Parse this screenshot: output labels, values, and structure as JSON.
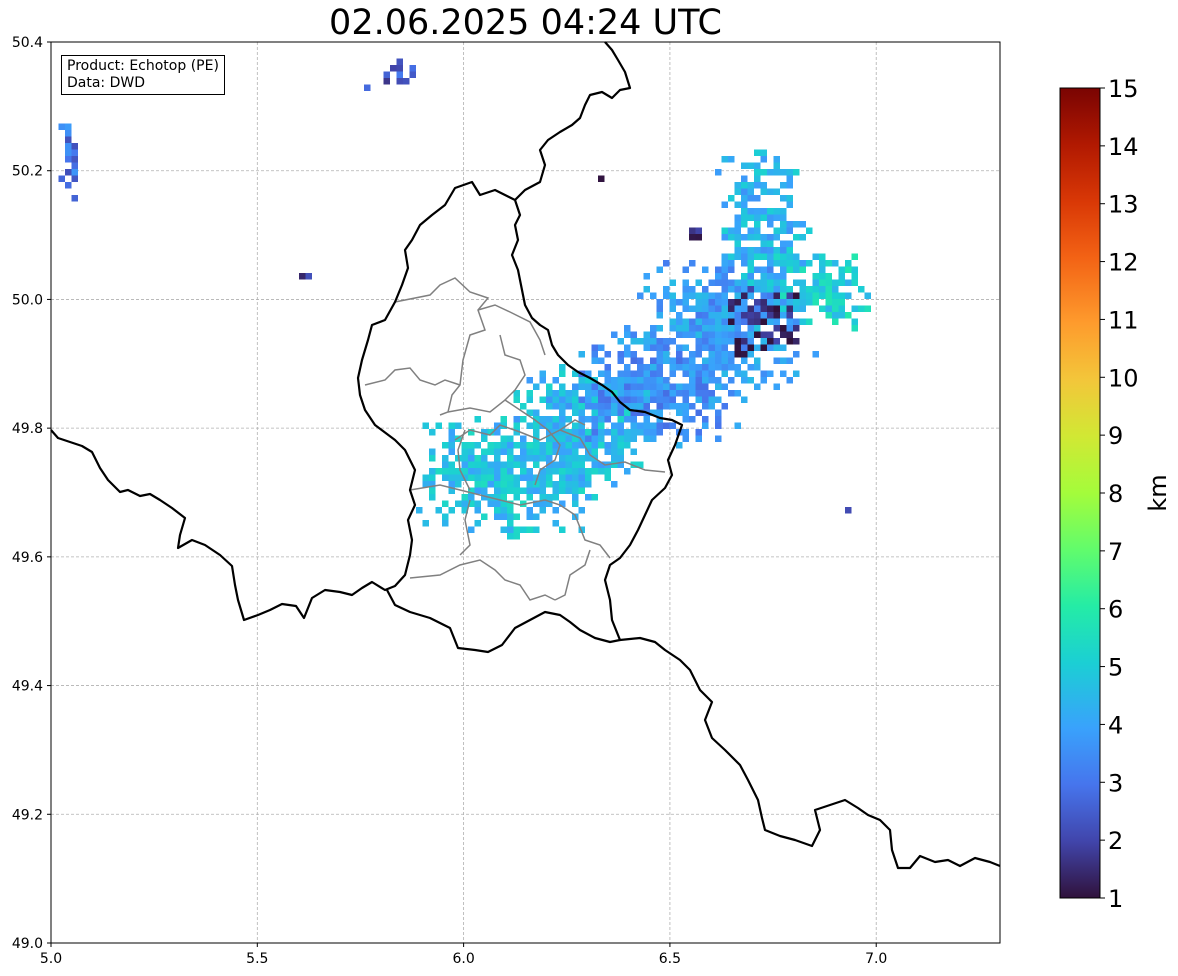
{
  "title": "02.06.2025 04:24 UTC",
  "info": {
    "product_line": "Product: Echotop (PE)",
    "data_line": "Data: DWD"
  },
  "colorbar": {
    "label": "km",
    "min": 1,
    "max": 15,
    "ticks": [
      "1",
      "2",
      "3",
      "4",
      "5",
      "6",
      "7",
      "8",
      "9",
      "10",
      "11",
      "12",
      "13",
      "14",
      "15"
    ],
    "colormap": "turbo"
  },
  "chart_data": {
    "type": "heatmap",
    "title": "02.06.2025 04:24 UTC",
    "xlabel": "",
    "ylabel": "",
    "xlim": [
      5.0,
      7.3
    ],
    "ylim": [
      49.0,
      50.4
    ],
    "x_ticks": [
      "5.0",
      "5.5",
      "6.0",
      "6.5",
      "7.0"
    ],
    "y_ticks": [
      "49.0",
      "49.2",
      "49.4",
      "49.6",
      "49.8",
      "50.0",
      "50.2",
      "50.4"
    ],
    "grid": true,
    "value_unit": "km",
    "value_range": [
      1,
      15
    ],
    "echo_cells": [
      {
        "lon": 5.04,
        "lat": 50.22,
        "value": 3.0
      },
      {
        "lon": 5.82,
        "lat": 50.36,
        "value": 2.3
      },
      {
        "lon": 5.61,
        "lat": 50.04,
        "value": 2.0
      },
      {
        "lon": 6.33,
        "lat": 50.19,
        "value": 1.2
      },
      {
        "lon": 6.55,
        "lat": 50.11,
        "value": 1.3
      },
      {
        "lon": 6.92,
        "lat": 49.68,
        "value": 2.0
      },
      {
        "lon": 6.1,
        "lat": 49.73,
        "value": 4.7
      },
      {
        "lon": 6.28,
        "lat": 49.81,
        "value": 4.5
      },
      {
        "lon": 6.45,
        "lat": 49.87,
        "value": 3.6
      },
      {
        "lon": 6.62,
        "lat": 49.96,
        "value": 3.8
      },
      {
        "lon": 6.72,
        "lat": 50.1,
        "value": 4.4
      },
      {
        "lon": 6.86,
        "lat": 50.02,
        "value": 5.1
      },
      {
        "lon": 6.72,
        "lat": 49.97,
        "value": 1.2
      }
    ]
  }
}
